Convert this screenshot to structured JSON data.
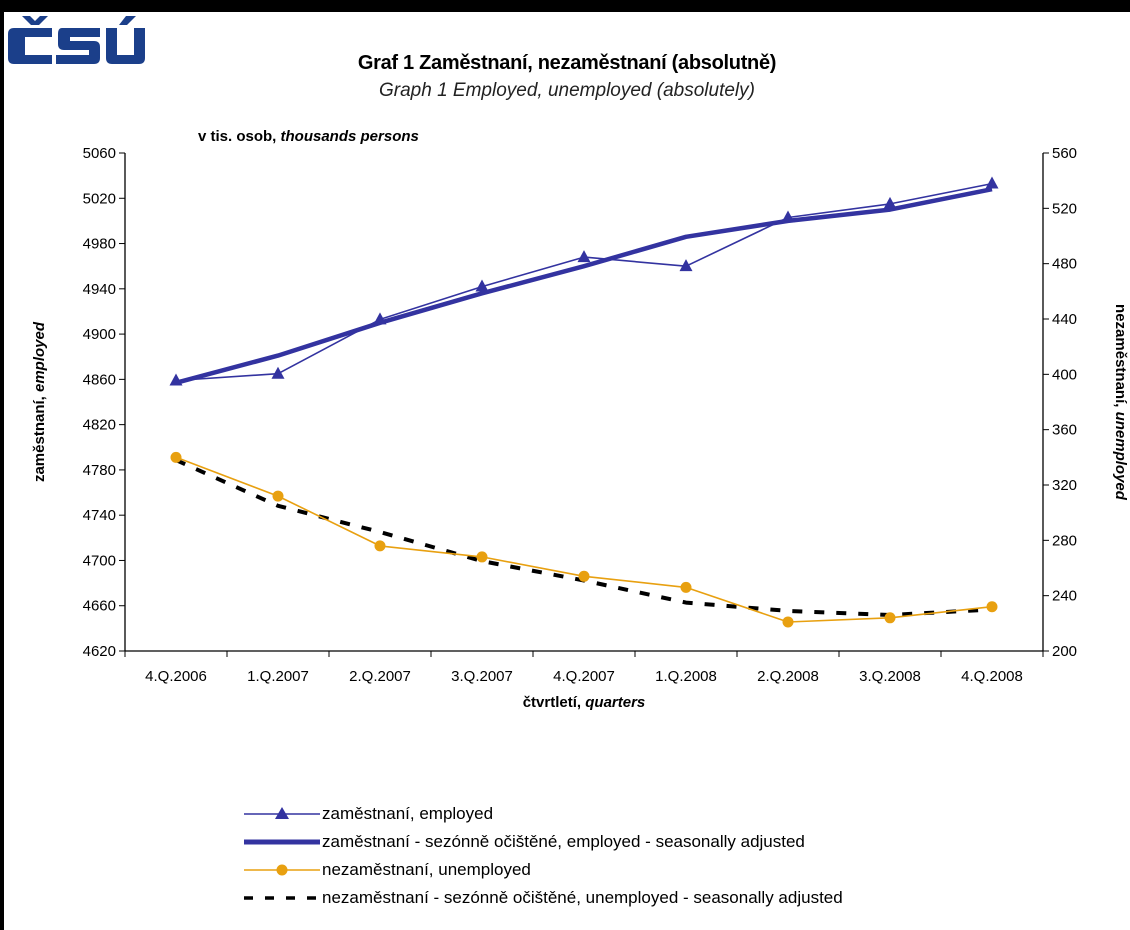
{
  "logo_text": "ČSÚ",
  "title": "Graf 1  Zaměstnaní, nezaměstnaní (absolutně)",
  "subtitle": "Graph 1  Employed, unemployed (absolutely)",
  "colors": {
    "employed": "#3333a0",
    "unemployed": "#e8a010",
    "unemployed_sa": "#000000",
    "logo": "#1b3f8a"
  },
  "chart_data": {
    "type": "line",
    "categories": [
      "4.Q.2006",
      "1.Q.2007",
      "2.Q.2007",
      "3.Q.2007",
      "4.Q.2007",
      "1.Q.2008",
      "2.Q.2008",
      "3.Q.2008",
      "4.Q.2008"
    ],
    "units_label": {
      "regular": "v tis. osob, ",
      "italic": "thousands persons"
    },
    "xlabel": {
      "regular": "čtvrtletí, ",
      "italic": "quarters"
    },
    "ylabel_left": {
      "regular": "zaměstnaní, ",
      "italic": "employed"
    },
    "ylabel_right": {
      "regular": "nezaměstnaní, ",
      "italic": "unemployed"
    },
    "y_left": {
      "min": 4620,
      "max": 5060,
      "step": 40
    },
    "y_right": {
      "min": 200,
      "max": 560,
      "step": 40
    },
    "series": [
      {
        "name": "zaměstnaní, employed",
        "axis": "left",
        "marker": "triangle",
        "line": "thin",
        "color": "#3333a0",
        "values": [
          4859,
          4865,
          4913,
          4942,
          4968,
          4960,
          5003,
          5015,
          5033
        ]
      },
      {
        "name": "zaměstnaní - sezónně očištěné, employed - seasonally adjusted",
        "axis": "left",
        "marker": "none",
        "line": "thick",
        "color": "#3333a0",
        "values": [
          4857,
          4881,
          4910,
          4936,
          4960,
          4986,
          5000,
          5010,
          5028
        ]
      },
      {
        "name": "nezaměstnaní,  unemployed",
        "axis": "right",
        "marker": "circle",
        "line": "thin",
        "color": "#e8a010",
        "values": [
          340,
          312,
          276,
          268,
          254,
          246,
          221,
          224,
          232
        ]
      },
      {
        "name": "nezaměstnaní - sezónně očištěné,  unemployed - seasonally adjusted",
        "axis": "right",
        "marker": "none",
        "line": "dashed",
        "color": "#000000",
        "values": [
          338,
          305,
          286,
          265,
          251,
          235,
          229,
          226,
          230
        ]
      }
    ],
    "legend_position": "bottom"
  }
}
